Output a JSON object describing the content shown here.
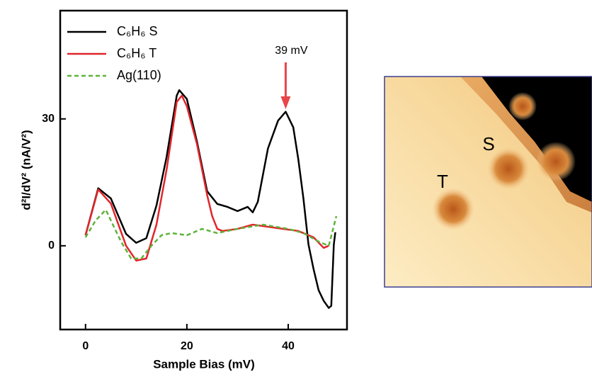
{
  "chart_data": {
    "type": "line",
    "xlabel": "Sample Bias (mV)",
    "ylabel": "d²I/dV² (nA/V²)",
    "xlim": [
      -5,
      51.6
    ],
    "ylim": [
      -19.8,
      55.6
    ],
    "xticks": [
      0,
      20,
      40
    ],
    "yticks": [
      0,
      30
    ],
    "legend": "upper left",
    "annotation": {
      "text": "39 mV",
      "x": 39.5,
      "color": "#e8454a"
    },
    "series": [
      {
        "name": "C₆H₆ S",
        "color": "#000000",
        "linestyle": "solid",
        "x": [
          0,
          2.5,
          5,
          8,
          10,
          12,
          14,
          16,
          18,
          18.5,
          20,
          22,
          24,
          26,
          28,
          30,
          32,
          33,
          34,
          36,
          38,
          39.5,
          41,
          42,
          43,
          44,
          45,
          46,
          47,
          48,
          48.5,
          49,
          49.3
        ],
        "values": [
          2.5,
          13.6,
          11.2,
          2.8,
          0.7,
          1.8,
          9.5,
          21,
          35.5,
          36.8,
          34.7,
          24.6,
          12.9,
          9.9,
          9.2,
          8.2,
          9.2,
          7.9,
          10.4,
          23,
          29.6,
          31.7,
          28,
          20.4,
          11.2,
          0.3,
          -5.5,
          -10.5,
          -13,
          -14.7,
          -14.2,
          0.3,
          3.2
        ]
      },
      {
        "name": "C₆H₆ T",
        "color": "#e0262b",
        "linestyle": "solid",
        "x": [
          0,
          2.5,
          5,
          8,
          10,
          12,
          14,
          16,
          18,
          19,
          20,
          22,
          24,
          25,
          26,
          27,
          30,
          33,
          36,
          39,
          42,
          45,
          47,
          48
        ],
        "values": [
          2.5,
          13.3,
          10,
          0,
          -3.5,
          -3,
          5,
          18,
          34,
          35.5,
          33,
          24,
          12,
          7,
          4,
          3.5,
          4,
          5,
          4.5,
          4,
          3.5,
          2,
          -0.5,
          0
        ]
      },
      {
        "name": "Ag(110)",
        "color": "#5db33a",
        "linestyle": "dashed",
        "x": [
          0,
          2,
          4,
          5,
          7,
          9,
          11,
          13,
          15,
          17,
          20,
          23,
          26,
          30,
          35,
          40,
          43,
          46,
          48,
          49.5
        ],
        "values": [
          2,
          6,
          8.5,
          6,
          1,
          -3,
          -3,
          0,
          2.5,
          3,
          2.5,
          4,
          3,
          4,
          5,
          4,
          3,
          1,
          0,
          7
        ]
      }
    ]
  },
  "image": {
    "labels": [
      "S",
      "T"
    ]
  }
}
